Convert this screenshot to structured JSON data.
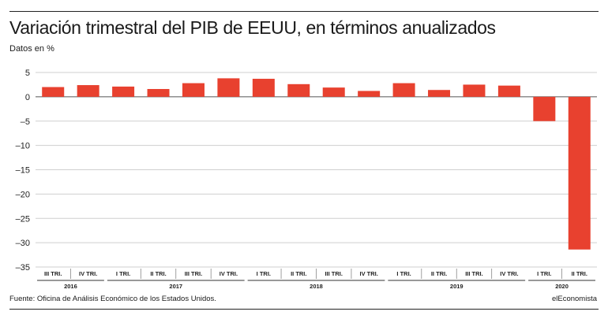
{
  "header": {
    "title": "Variación trimestral del PIB de EEUU, en términos anualizados",
    "subtitle": "Datos en %"
  },
  "footer": {
    "source": "Fuente: Oficina de Análisis Económico de los Estados Unidos.",
    "brand": "elEconomista"
  },
  "chart_data": {
    "type": "bar",
    "title": "Variación trimestral del PIB de EEUU, en términos anualizados",
    "ylabel": "Datos en %",
    "xlabel": "",
    "ylim": [
      -35,
      5
    ],
    "yticks": [
      5,
      0,
      -5,
      -10,
      -15,
      -20,
      -25,
      -30,
      -35
    ],
    "ytick_labels": [
      "5",
      "0",
      "–5",
      "–10",
      "–15",
      "–20",
      "–25",
      "–30",
      "–35"
    ],
    "grid": true,
    "bar_color": "#e8412f",
    "categories": [
      "III TRI.",
      "IV TRI.",
      "I TRI.",
      "II TRI.",
      "III TRI.",
      "IV TRI.",
      "I TRI.",
      "II TRI.",
      "III TRI.",
      "IV TRI.",
      "I TRI.",
      "II TRI.",
      "III TRI.",
      "IV TRI.",
      "I TRI.",
      "II TRI."
    ],
    "values": [
      2.0,
      2.4,
      2.1,
      1.6,
      2.8,
      3.8,
      3.7,
      2.6,
      1.9,
      1.2,
      2.8,
      1.4,
      2.5,
      2.3,
      -5.0,
      -31.4
    ],
    "groups": [
      {
        "label": "2016",
        "count": 2
      },
      {
        "label": "2017",
        "count": 4
      },
      {
        "label": "2018",
        "count": 4
      },
      {
        "label": "2019",
        "count": 4
      },
      {
        "label": "2020",
        "count": 2
      }
    ]
  }
}
